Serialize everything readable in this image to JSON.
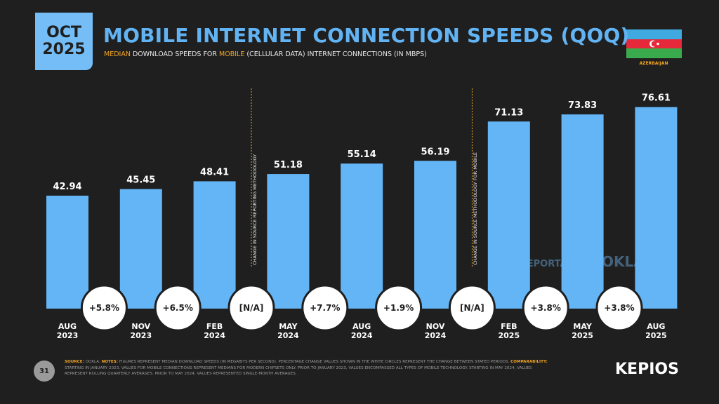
{
  "header": {
    "date": "OCT\n2025",
    "country": "AZERBAIJAN"
  },
  "chart_data": {
    "type": "bar",
    "title": "MOBILE INTERNET CONNECTION SPEEDS (QOQ)",
    "subtitle_parts": [
      "MEDIAN",
      " DOWNLOAD SPEEDS FOR ",
      "MOBILE",
      " (CELLULAR DATA) INTERNET CONNECTIONS (IN MBPS)"
    ],
    "categories": [
      "AUG\n2023",
      "NOV\n2023",
      "FEB\n2024",
      "MAY\n2024",
      "AUG\n2024",
      "NOV\n2024",
      "FEB\n2025",
      "MAY\n2025",
      "AUG\n2025"
    ],
    "values": [
      42.94,
      45.45,
      48.41,
      51.18,
      55.14,
      56.19,
      71.13,
      73.83,
      76.61
    ],
    "color": "#64b5f6",
    "changes": [
      "+5.8%",
      "+6.5%",
      "[N/A]",
      "+7.7%",
      "+1.9%",
      "[N/A]",
      "+3.8%",
      "+3.8%"
    ],
    "methodology_notes": [
      null,
      null,
      null,
      "CHANGE IN SOURCE REPORTING METHODOLOGY",
      null,
      null,
      "CHANGE IN SOURCE METHODOLOGY FOR MOBILE",
      null,
      null
    ],
    "watermarks": [
      "DATAREPORTAL",
      "OOKLA"
    ]
  },
  "footer": {
    "page": "31",
    "notes": [
      [
        "SOURCE:",
        " OOKLA. "
      ],
      [
        "NOTES:",
        " FIGURES REPRESENT MEDIAN DOWNLOAD SPEEDS (IN MEGABITS PER SECOND). PERCENTAGE CHANGE VALUES SHOWN IN THE WHITE CIRCLES REPRESENT THE CHANGE BETWEEN STATED PERIODS. "
      ],
      [
        "COMPARABILITY:",
        " STARTING IN JANUARY 2023, VALUES FOR MOBILE CONNECTIONS REPRESENT MEDIANS FOR MODERN CHIPSETS ONLY. PRIOR TO JANUARY 2023, VALUES ENCOMPASSED ALL TYPES OF MOBILE TECHNOLOGY. STARTING IN MAY 2024, VALUES REPRESENT ROLLING QUARTERLY AVERAGES. PRIOR TO MAY 2024, VALUES REPRESENTED SINGLE-MONTH AVERAGES."
      ]
    ],
    "brand": "KEPIOS"
  }
}
